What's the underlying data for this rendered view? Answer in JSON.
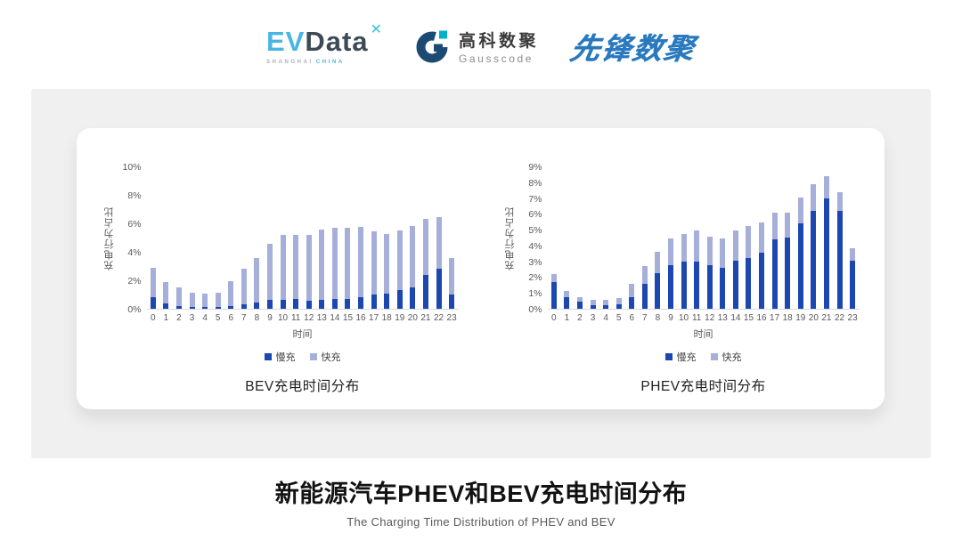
{
  "header": {
    "evdata": {
      "ev": "EV",
      "data": "Data",
      "mark": "✕",
      "sub_left": "SHANGHAI",
      "sub_right": "CHINA"
    },
    "gausscode": {
      "cn": "高科数聚",
      "en": "Gausscode",
      "navy": "#1D4A73",
      "teal": "#00AFC8"
    },
    "pioneer": {
      "text": "先锋数聚",
      "color": "#2979BF"
    }
  },
  "colors": {
    "slow_charge": "#1C46B0",
    "fast_charge": "#A6AFDA",
    "axis_text": "#595959",
    "axis_line": "#D9D9D9",
    "panel_gray": "#F0F0F0"
  },
  "chart_data": [
    {
      "type": "bar",
      "stacked": true,
      "title": "BEV充电时间分布",
      "xlabel": "时间",
      "ylabel": "充电行为占比",
      "ymax": 10,
      "ytick_step": 2,
      "ytick_suffix": "%",
      "grid": false,
      "legend_position": "bottom",
      "categories": [
        "0",
        "1",
        "2",
        "3",
        "4",
        "5",
        "6",
        "7",
        "8",
        "9",
        "10",
        "11",
        "12",
        "13",
        "14",
        "15",
        "16",
        "17",
        "18",
        "19",
        "20",
        "21",
        "22",
        "23"
      ],
      "series": [
        {
          "name": "慢充",
          "color": "#1C46B0",
          "values": [
            0.8,
            0.35,
            0.2,
            0.15,
            0.1,
            0.1,
            0.2,
            0.3,
            0.45,
            0.6,
            0.65,
            0.7,
            0.55,
            0.6,
            0.7,
            0.7,
            0.8,
            1.0,
            1.1,
            1.3,
            1.5,
            2.4,
            2.8,
            1.0
          ]
        },
        {
          "name": "快充",
          "color": "#A6AFDA",
          "values": [
            2.1,
            1.55,
            1.3,
            1.0,
            0.95,
            1.05,
            1.75,
            2.5,
            3.15,
            4.0,
            4.55,
            4.55,
            4.7,
            5.0,
            5.05,
            5.05,
            5.0,
            4.45,
            4.2,
            4.25,
            4.35,
            3.95,
            3.7,
            2.6
          ]
        }
      ]
    },
    {
      "type": "bar",
      "stacked": true,
      "title": "PHEV充电时间分布",
      "xlabel": "时间",
      "ylabel": "充电行为占比",
      "ymax": 9,
      "ytick_step": 1,
      "ytick_suffix": "%",
      "grid": false,
      "legend_position": "bottom",
      "categories": [
        "0",
        "1",
        "2",
        "3",
        "4",
        "5",
        "6",
        "7",
        "8",
        "9",
        "10",
        "11",
        "12",
        "13",
        "14",
        "15",
        "16",
        "17",
        "18",
        "19",
        "20",
        "21",
        "22",
        "23"
      ],
      "series": [
        {
          "name": "慢充",
          "color": "#1C46B0",
          "values": [
            1.7,
            0.75,
            0.45,
            0.25,
            0.25,
            0.3,
            0.75,
            1.6,
            2.25,
            2.8,
            3.0,
            3.0,
            2.75,
            2.6,
            3.05,
            3.2,
            3.55,
            4.4,
            4.55,
            5.45,
            6.25,
            7.0,
            6.2,
            3.05
          ]
        },
        {
          "name": "快充",
          "color": "#A6AFDA",
          "values": [
            0.5,
            0.4,
            0.3,
            0.3,
            0.3,
            0.4,
            0.85,
            1.1,
            1.35,
            1.7,
            1.75,
            2.0,
            1.85,
            1.9,
            1.95,
            2.05,
            1.95,
            1.7,
            1.55,
            1.65,
            1.7,
            1.45,
            1.2,
            0.8
          ]
        }
      ]
    }
  ],
  "footer": {
    "title": "新能源汽车PHEV和BEV充电时间分布",
    "subtitle": "The Charging Time Distribution of PHEV and BEV"
  }
}
